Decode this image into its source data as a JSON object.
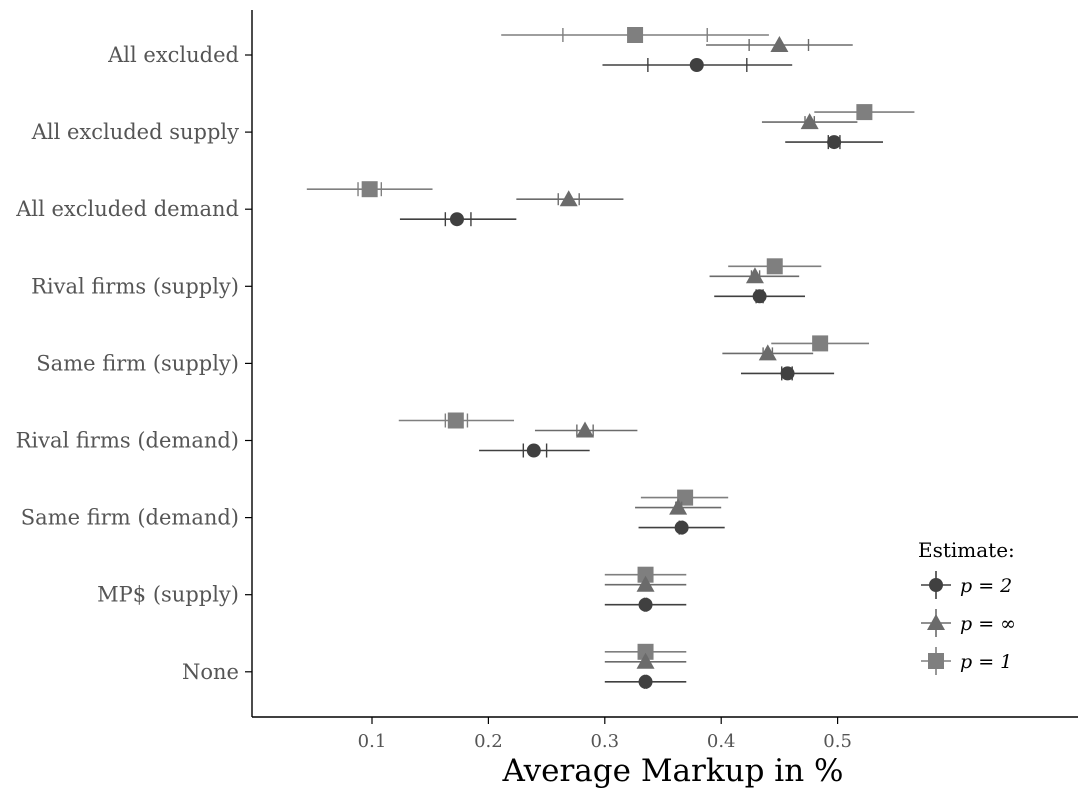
{
  "chart_data": {
    "type": "scatter",
    "title": "",
    "xlabel": "Average Markup in %",
    "ylabel": "",
    "xlim": [
      0.02,
      0.585
    ],
    "x_ticks": [
      "0.1",
      "0.2",
      "0.3",
      "0.4",
      "0.5"
    ],
    "x_tick_values": [
      0.1,
      0.2,
      0.3,
      0.4,
      0.5
    ],
    "grid": false,
    "legend_position": "bottom-right",
    "legend_title": "Estimate:",
    "categories": [
      "All excluded",
      "All excluded supply",
      "All excluded demand",
      "Rival firms (supply)",
      "Same firm (supply)",
      "Rival firms (demand)",
      "Same firm (demand)",
      "MP$ (supply)",
      "None"
    ],
    "series": [
      {
        "name": "p = 2",
        "shape": "circle",
        "color": "#404040",
        "values": [
          0.379,
          0.497,
          0.173,
          0.433,
          0.457,
          0.239,
          0.366,
          0.335,
          0.335
        ],
        "ci_lower": [
          0.298,
          0.455,
          0.124,
          0.394,
          0.417,
          0.192,
          0.329,
          0.3,
          0.3
        ],
        "ci_upper": [
          0.461,
          0.539,
          0.224,
          0.472,
          0.497,
          0.287,
          0.403,
          0.37,
          0.37
        ],
        "inner_lower": [
          0.337,
          0.492,
          0.163,
          0.43,
          0.452,
          0.23,
          0.364,
          0.334,
          0.334
        ],
        "inner_upper": [
          0.422,
          0.502,
          0.185,
          0.436,
          0.461,
          0.25,
          0.367,
          0.336,
          0.336
        ]
      },
      {
        "name": "p = ∞",
        "shape": "triangle",
        "color": "#6b6b6b",
        "values": [
          0.45,
          0.476,
          0.269,
          0.429,
          0.44,
          0.283,
          0.363,
          0.335,
          0.335
        ],
        "ci_lower": [
          0.387,
          0.435,
          0.224,
          0.39,
          0.401,
          0.24,
          0.326,
          0.3,
          0.3
        ],
        "ci_upper": [
          0.513,
          0.517,
          0.316,
          0.467,
          0.479,
          0.328,
          0.4,
          0.37,
          0.37
        ],
        "inner_lower": [
          0.424,
          0.472,
          0.26,
          0.426,
          0.436,
          0.276,
          0.361,
          0.334,
          0.334
        ],
        "inner_upper": [
          0.475,
          0.48,
          0.278,
          0.433,
          0.444,
          0.29,
          0.366,
          0.336,
          0.336
        ]
      },
      {
        "name": "p = 1",
        "shape": "square",
        "color": "#7f7f7f",
        "values": [
          0.326,
          0.523,
          0.098,
          0.446,
          0.485,
          0.172,
          0.369,
          0.335,
          0.335
        ],
        "ci_lower": [
          0.211,
          0.48,
          0.044,
          0.406,
          0.443,
          0.123,
          0.331,
          0.3,
          0.3
        ],
        "ci_upper": [
          0.441,
          0.566,
          0.152,
          0.486,
          0.527,
          0.222,
          0.406,
          0.37,
          0.37
        ],
        "inner_lower": [
          0.264,
          0.518,
          0.088,
          0.441,
          0.481,
          0.163,
          0.366,
          0.334,
          0.334
        ],
        "inner_upper": [
          0.388,
          0.528,
          0.108,
          0.451,
          0.489,
          0.182,
          0.371,
          0.336,
          0.336
        ]
      }
    ],
    "legend": {
      "title": "Estimate:",
      "entries": [
        {
          "label": "p = 2",
          "shape": "circle",
          "color": "#404040"
        },
        {
          "label": "p = ∞",
          "shape": "triangle",
          "color": "#6b6b6b"
        },
        {
          "label": "p = 1",
          "shape": "square",
          "color": "#7f7f7f"
        }
      ]
    }
  }
}
